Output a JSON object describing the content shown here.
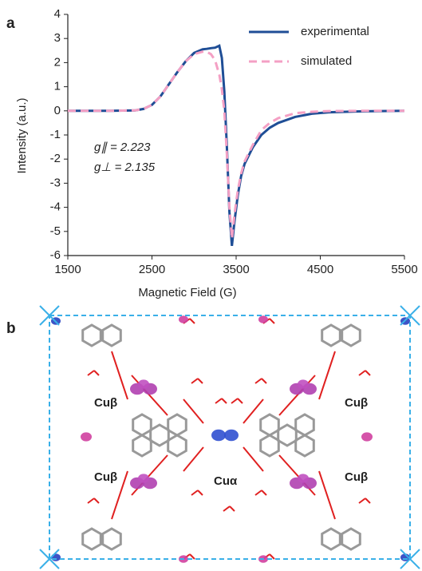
{
  "chart_data": {
    "type": "line",
    "panel_label": "a",
    "x_label": "Magnetic Field (G)",
    "y_label": "Intensity (a.u.)",
    "x": [
      1500,
      2000,
      2300,
      2400,
      2500,
      2600,
      2700,
      2800,
      2900,
      3000,
      3100,
      3150,
      3200,
      3250,
      3300,
      3330,
      3360,
      3390,
      3420,
      3450,
      3480,
      3520,
      3560,
      3600,
      3700,
      3800,
      3900,
      4000,
      4200,
      4400,
      4600,
      5000,
      5500
    ],
    "series": [
      {
        "name": "experimental",
        "color": "#1f4e96",
        "line_style": "solid",
        "values": [
          0,
          0,
          0.02,
          0.08,
          0.25,
          0.6,
          1.1,
          1.6,
          2.05,
          2.4,
          2.55,
          2.57,
          2.6,
          2.62,
          2.7,
          2.2,
          0.8,
          -1.5,
          -4.2,
          -5.6,
          -4.6,
          -3.5,
          -2.7,
          -2.2,
          -1.5,
          -1.0,
          -0.7,
          -0.5,
          -0.25,
          -0.12,
          -0.06,
          -0.02,
          0
        ]
      },
      {
        "name": "simulated",
        "color": "#f4a0c4",
        "line_style": "dashed",
        "values": [
          0,
          0,
          0.02,
          0.08,
          0.25,
          0.6,
          1.1,
          1.6,
          2.05,
          2.35,
          2.45,
          2.45,
          2.35,
          2.1,
          1.5,
          0.9,
          0.0,
          -1.8,
          -4.0,
          -5.3,
          -4.3,
          -3.3,
          -2.6,
          -2.1,
          -1.4,
          -0.8,
          -0.5,
          -0.3,
          -0.1,
          -0.04,
          -0.01,
          0,
          0
        ]
      }
    ],
    "annotations": [
      "g∥ = 2.223",
      "g⊥ = 2.135"
    ],
    "xlim": [
      1500,
      5500
    ],
    "xticks": [
      1500,
      2500,
      3500,
      4500,
      5500
    ],
    "ylim": [
      -6,
      4
    ],
    "yticks": [
      -6,
      -5,
      -4,
      -3,
      -2,
      -1,
      0,
      1,
      2,
      3,
      4
    ],
    "legend": "upper right"
  },
  "panel_b": {
    "panel_label": "b",
    "cu_beta_labels": [
      "Cuβ",
      "Cuβ",
      "Cuβ",
      "Cuβ"
    ],
    "cu_alpha_label": "Cuα"
  }
}
